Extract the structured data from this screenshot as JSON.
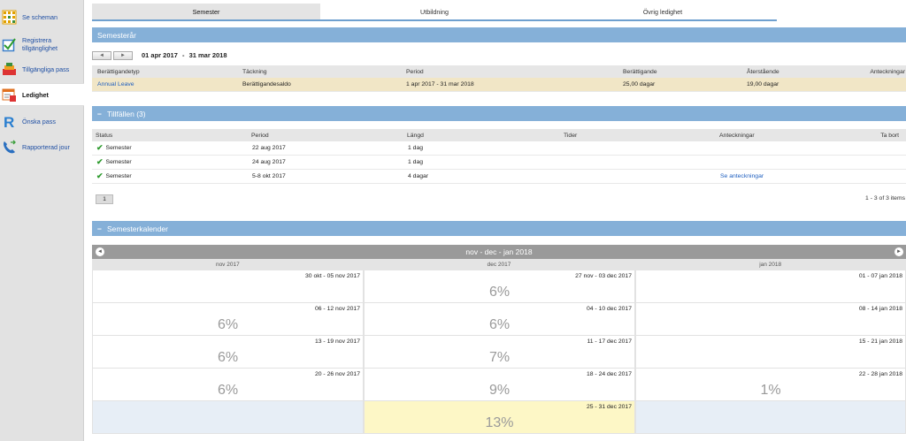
{
  "sidebar": {
    "items": [
      {
        "label": "Se scheman",
        "icon": "schedule-grid-icon"
      },
      {
        "label": "Registrera tillgänglighet",
        "icon": "checkbox-icon"
      },
      {
        "label": "Tillgängliga pass",
        "icon": "shifts-icon"
      },
      {
        "label": "Ledighet",
        "icon": "calendar-leave-icon"
      },
      {
        "label": "Önska pass",
        "icon": "request-r-icon"
      },
      {
        "label": "Rapporterad jour",
        "icon": "phone-icon"
      }
    ]
  },
  "tabs": [
    "Semester",
    "Utbildning",
    "Övrig ledighet"
  ],
  "semesterar": {
    "title": "Semesterår",
    "prev": "◄",
    "next": "►",
    "range_from": "01 apr 2017",
    "range_sep": "-",
    "range_to": "31 mar 2018",
    "headers": {
      "type": "Berättigandetyp",
      "coverage": "Täckning",
      "period": "Period",
      "entitled": "Berättigande",
      "remaining": "Återstående",
      "notes": "Anteckningar"
    },
    "row": {
      "type": "Annual Leave",
      "coverage": "Berättigandesaldo",
      "period": "1 apr 2017 - 31 mar 2018",
      "entitled": "25,00 dagar",
      "remaining": "19,00 dagar"
    }
  },
  "tillfallen": {
    "title": "Tillfällen (3)",
    "collapse": "−",
    "headers": {
      "status": "Status",
      "period": "Period",
      "length": "Längd",
      "times": "Tider",
      "notes": "Anteckningar",
      "remove": "Ta bort"
    },
    "rows": [
      {
        "status": "Semester",
        "period": "22 aug 2017",
        "length": "1 dag",
        "notes": ""
      },
      {
        "status": "Semester",
        "period": "24 aug 2017",
        "length": "1 dag",
        "notes": ""
      },
      {
        "status": "Semester",
        "period": "5-8 okt 2017",
        "length": "4 dagar",
        "notes": "Se anteckningar"
      }
    ],
    "pager_page": "1",
    "pager_info": "1 - 3 of 3 items"
  },
  "kalender": {
    "title": "Semesterkalender",
    "collapse": "−",
    "range_title": "nov - dec - jan 2018",
    "months": [
      "nov 2017",
      "dec 2017",
      "jan 2018"
    ],
    "columns": [
      [
        {
          "week": "30 okt - 05 nov 2017",
          "pct": ""
        },
        {
          "week": "06 - 12 nov 2017",
          "pct": "6%"
        },
        {
          "week": "13 - 19 nov 2017",
          "pct": "6%"
        },
        {
          "week": "20 - 26 nov 2017",
          "pct": "6%"
        },
        {
          "week": "",
          "pct": "",
          "empty": true
        }
      ],
      [
        {
          "week": "27 nov - 03 dec 2017",
          "pct": "6%"
        },
        {
          "week": "04 - 10 dec 2017",
          "pct": "6%"
        },
        {
          "week": "11 - 17 dec 2017",
          "pct": "7%"
        },
        {
          "week": "18 - 24 dec 2017",
          "pct": "9%"
        },
        {
          "week": "25 - 31 dec 2017",
          "pct": "13%",
          "highlight": true
        }
      ],
      [
        {
          "week": "01 - 07 jan 2018",
          "pct": ""
        },
        {
          "week": "08 - 14 jan 2018",
          "pct": ""
        },
        {
          "week": "15 - 21 jan 2018",
          "pct": ""
        },
        {
          "week": "22 - 28 jan 2018",
          "pct": "1%"
        },
        {
          "week": "",
          "pct": "",
          "empty": true
        }
      ]
    ]
  },
  "colors": {
    "section_header": "#85b0d8",
    "row_highlight": "#f1e6c6",
    "link": "#1f5fbf",
    "calendar_bar": "#9a9a9a",
    "calendar_highlight": "#fdf7c6"
  }
}
